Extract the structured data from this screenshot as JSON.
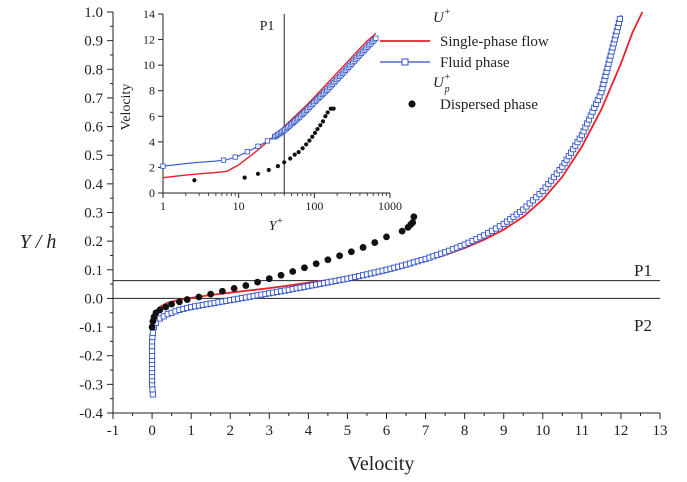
{
  "chart_data": [
    {
      "id": "main",
      "type": "scatter",
      "xlabel": "Velocity",
      "ylabel": "Y / h",
      "xlim": [
        -1,
        13
      ],
      "ylim": [
        -0.4,
        1.0
      ],
      "xticks": [
        "-1",
        "0",
        "1",
        "2",
        "3",
        "4",
        "5",
        "6",
        "7",
        "8",
        "9",
        "10",
        "11",
        "12",
        "13"
      ],
      "yticks": [
        "-0.4",
        "-0.3",
        "-0.2",
        "-0.1",
        "0.0",
        "0.1",
        "0.2",
        "0.3",
        "0.4",
        "0.5",
        "0.6",
        "0.7",
        "0.8",
        "0.9",
        "1.0"
      ],
      "reference_lines": [
        {
          "label": "P1",
          "y": 0.062
        },
        {
          "label": "P2",
          "y": 0.0
        }
      ],
      "series": [
        {
          "name": "Single-phase flow",
          "kind": "line",
          "color": "#e8202a",
          "x": [
            0.0,
            0.02,
            0.05,
            0.1,
            0.2,
            0.4,
            0.7,
            1.0,
            1.5,
            2.0,
            2.5,
            3.0,
            3.5,
            4.0,
            4.5,
            5.0,
            5.5,
            6.0,
            6.5,
            7.0,
            7.5,
            8.0,
            8.5,
            9.0,
            9.5,
            10.0,
            10.5,
            11.0,
            11.5,
            12.0,
            12.3,
            12.55
          ],
          "y": [
            -0.09,
            -0.075,
            -0.06,
            -0.045,
            -0.03,
            -0.015,
            -0.005,
            0.002,
            0.012,
            0.02,
            0.028,
            0.036,
            0.045,
            0.055,
            0.064,
            0.074,
            0.086,
            0.1,
            0.115,
            0.132,
            0.152,
            0.176,
            0.205,
            0.24,
            0.285,
            0.345,
            0.425,
            0.53,
            0.66,
            0.82,
            0.93,
            1.0
          ]
        },
        {
          "name": "Fluid phase",
          "kind": "line-square",
          "color": "#2f52c8",
          "x": [
            0.02,
            0.0,
            0.0,
            0.0,
            0.02,
            0.05,
            0.1,
            0.2,
            0.4,
            0.7,
            1.0,
            1.5,
            2.0,
            2.5,
            3.0,
            3.5,
            4.0,
            4.5,
            5.0,
            5.5,
            6.0,
            6.5,
            7.0,
            7.5,
            8.0,
            8.5,
            9.0,
            9.5,
            10.0,
            10.5,
            11.0,
            11.5,
            12.0
          ],
          "y": [
            -0.335,
            -0.3,
            -0.2,
            -0.15,
            -0.12,
            -0.1,
            -0.085,
            -0.07,
            -0.055,
            -0.04,
            -0.03,
            -0.018,
            -0.006,
            0.006,
            0.018,
            0.03,
            0.043,
            0.056,
            0.069,
            0.084,
            0.1,
            0.118,
            0.138,
            0.161,
            0.188,
            0.22,
            0.26,
            0.31,
            0.375,
            0.46,
            0.57,
            0.72,
            0.99
          ]
        },
        {
          "name": "Dispersed phase",
          "kind": "dots",
          "color": "#111111",
          "x": [
            0.0,
            0.02,
            0.05,
            0.1,
            0.2,
            0.35,
            0.5,
            0.7,
            0.9,
            1.2,
            1.5,
            1.8,
            2.1,
            2.4,
            2.7,
            3.0,
            3.3,
            3.6,
            3.9,
            4.2,
            4.5,
            4.8,
            5.1,
            5.4,
            5.7,
            6.0,
            6.4,
            6.55,
            6.62,
            6.67,
            6.7
          ],
          "y": [
            -0.1,
            -0.08,
            -0.065,
            -0.05,
            -0.04,
            -0.03,
            -0.02,
            -0.012,
            -0.004,
            0.005,
            0.015,
            0.025,
            0.035,
            0.045,
            0.057,
            0.069,
            0.081,
            0.094,
            0.107,
            0.121,
            0.135,
            0.149,
            0.163,
            0.178,
            0.195,
            0.215,
            0.235,
            0.248,
            0.258,
            0.265,
            0.285
          ]
        }
      ]
    },
    {
      "id": "inset",
      "type": "line",
      "xlabel": "Y+",
      "ylabel": "Velocity",
      "xscale": "log",
      "xlim": [
        1,
        1000
      ],
      "ylim": [
        0,
        14
      ],
      "xticks": [
        "1",
        "10",
        "100",
        "1000"
      ],
      "yticks": [
        "0",
        "2",
        "4",
        "6",
        "8",
        "10",
        "12",
        "14"
      ],
      "reference_lines": [
        {
          "label": "P1",
          "x": 40
        }
      ],
      "series": [
        {
          "name": "Single-phase flow",
          "kind": "line",
          "color": "#e8202a",
          "x": [
            1,
            2,
            3,
            5,
            7,
            10,
            15,
            20,
            30,
            40,
            60,
            80,
            100,
            150,
            200,
            300,
            400,
            500,
            600,
            650
          ],
          "y": [
            1.2,
            1.4,
            1.5,
            1.6,
            1.7,
            2.2,
            3.0,
            3.6,
            4.5,
            5.2,
            6.2,
            6.9,
            7.5,
            8.6,
            9.4,
            10.5,
            11.3,
            11.9,
            12.3,
            12.5
          ]
        },
        {
          "name": "Fluid phase",
          "kind": "line-square",
          "color": "#2f52c8",
          "x": [
            1,
            2,
            3,
            5,
            7,
            10,
            15,
            20,
            30,
            40,
            60,
            80,
            100,
            150,
            200,
            300,
            400,
            500,
            600,
            650
          ],
          "y": [
            2.1,
            2.3,
            2.4,
            2.5,
            2.6,
            2.9,
            3.4,
            3.8,
            4.4,
            4.9,
            5.8,
            6.5,
            7.1,
            8.1,
            8.9,
            10.0,
            10.8,
            11.4,
            11.9,
            12.1
          ]
        },
        {
          "name": "Dispersed phase",
          "kind": "dots",
          "color": "#111111",
          "x": [
            2.6,
            12,
            18,
            25,
            33,
            40,
            48,
            55,
            62,
            70,
            78,
            86,
            94,
            102,
            110,
            120,
            130,
            140,
            150,
            165,
            180
          ],
          "y": [
            1.0,
            1.2,
            1.5,
            1.8,
            2.1,
            2.4,
            2.7,
            3.0,
            3.2,
            3.5,
            3.8,
            4.1,
            4.4,
            4.7,
            5.0,
            5.3,
            5.6,
            6.0,
            6.3,
            6.6,
            6.6
          ]
        }
      ]
    }
  ],
  "legend": {
    "placement": "top-right",
    "group_labels": {
      "u_plus": "U",
      "u_plus_sup": "+",
      "up_plus": "U",
      "up_plus_sup": "+",
      "up_plus_sub": "p"
    },
    "items": [
      {
        "label": "Single-phase flow",
        "color": "#e8202a",
        "marker": "line"
      },
      {
        "label": "Fluid phase",
        "color": "#2f52c8",
        "marker": "line-square"
      },
      {
        "label": "Dispersed phase",
        "color": "#111111",
        "marker": "dot"
      }
    ]
  },
  "labels": {
    "main_ylabel": "Y / h",
    "main_xlabel": "Velocity",
    "inset_ylabel": "Velocity",
    "inset_xlabel_base": "Y",
    "inset_xlabel_sup": "+",
    "p1": "P1",
    "p2": "P2",
    "inset_p1": "P1"
  }
}
